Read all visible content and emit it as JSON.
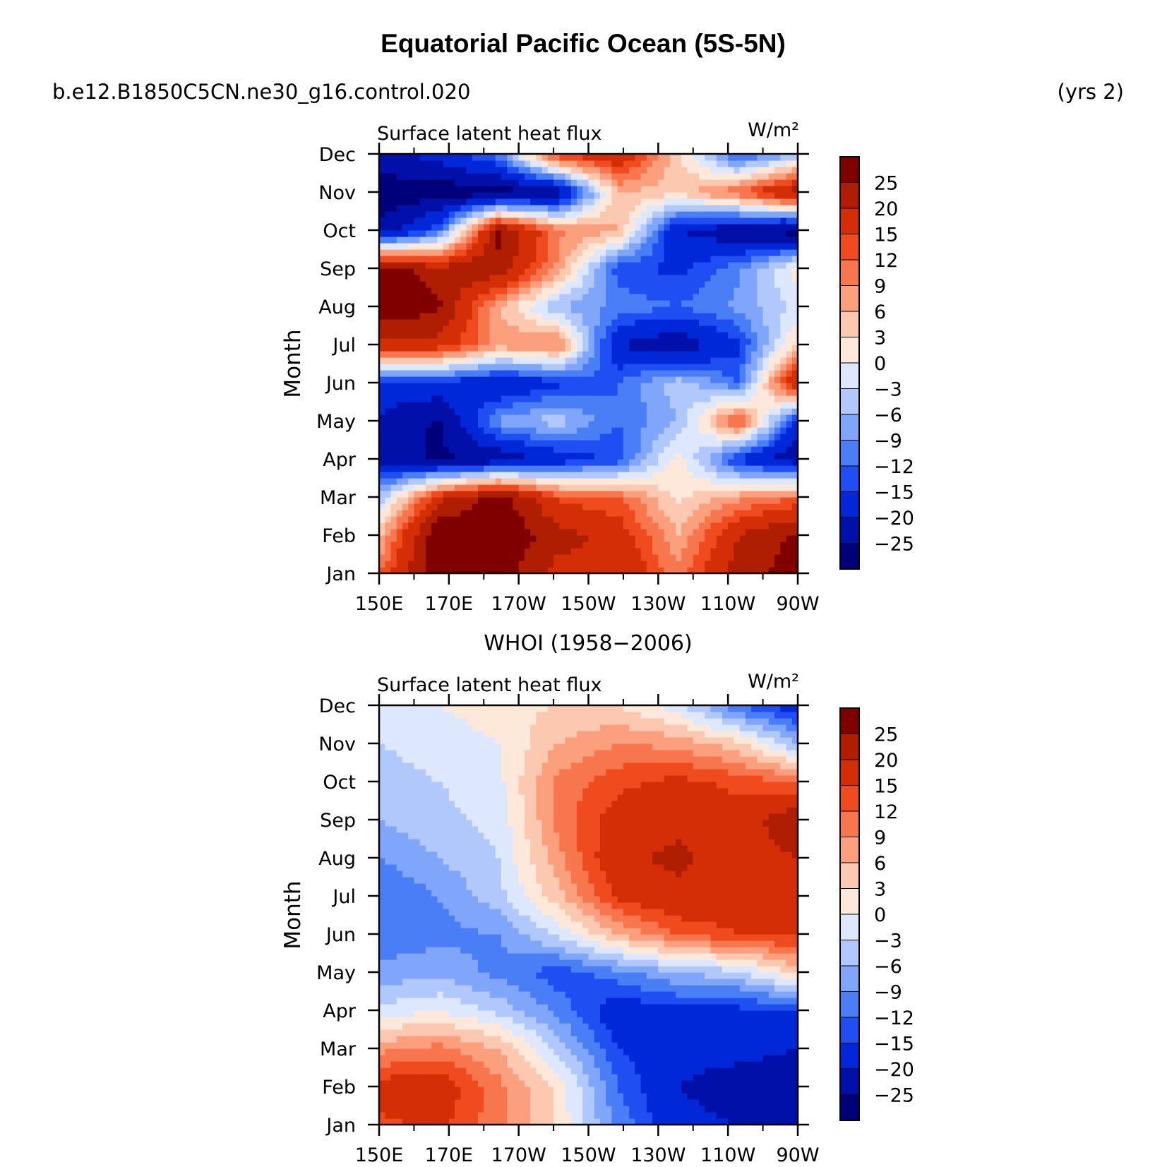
{
  "main_title": "Equatorial Pacific Ocean (5S-5N)",
  "case_name": "b.e12.B1850C5CN.ne30_g16.control.020",
  "years_label": "(yrs 2)",
  "colors": {
    "palette": [
      "#00007a",
      "#0010a8",
      "#0028d8",
      "#1f4ff2",
      "#4a7ef7",
      "#7fa6fb",
      "#b1c8fd",
      "#dde8fe",
      "#fde8da",
      "#fcc8b0",
      "#fb9f7d",
      "#f8764d",
      "#f04a1f",
      "#d42e07",
      "#b01e02",
      "#800000"
    ]
  },
  "chart_data": [
    {
      "type": "heatmap",
      "title": "",
      "left_label": "Surface latent heat flux",
      "units": "W/m²",
      "ylabel": "Month",
      "xlabel": "",
      "x": [
        "150E",
        "170E",
        "170W",
        "150W",
        "130W",
        "110W",
        "90W"
      ],
      "xlim": [
        150,
        270
      ],
      "y": [
        "Jan",
        "Feb",
        "Mar",
        "Apr",
        "May",
        "Jun",
        "Jul",
        "Aug",
        "Sep",
        "Oct",
        "Nov",
        "Dec"
      ],
      "colorbar_levels": [
        "25",
        "20",
        "15",
        "12",
        "9",
        "6",
        "3",
        "0",
        "−3",
        "−6",
        "−9",
        "−12",
        "−15",
        "−20",
        "−25"
      ],
      "values": [
        [
          12,
          28,
          28,
          18,
          20,
          10,
          22,
          28
        ],
        [
          5,
          30,
          30,
          22,
          18,
          6,
          20,
          26
        ],
        [
          -5,
          18,
          28,
          14,
          12,
          2,
          8,
          12
        ],
        [
          -22,
          -26,
          -24,
          -18,
          -14,
          2,
          -16,
          -24
        ],
        [
          -20,
          -26,
          -8,
          -4,
          -12,
          -6,
          14,
          -18
        ],
        [
          -18,
          -16,
          -20,
          -16,
          -12,
          -4,
          -12,
          22
        ],
        [
          18,
          18,
          8,
          10,
          -20,
          -24,
          -16,
          4
        ],
        [
          30,
          26,
          6,
          -6,
          -10,
          -12,
          -8,
          -2
        ],
        [
          28,
          22,
          24,
          8,
          -14,
          -16,
          -10,
          2
        ],
        [
          -24,
          -12,
          26,
          10,
          6,
          -20,
          -24,
          -28
        ],
        [
          -28,
          -28,
          -28,
          -24,
          6,
          4,
          12,
          24
        ],
        [
          -22,
          -18,
          -10,
          16,
          20,
          4,
          -14,
          -6
        ]
      ]
    },
    {
      "type": "heatmap",
      "title": "WHOI (1958−2006)",
      "left_label": "Surface latent heat flux",
      "units": "W/m²",
      "ylabel": "Month",
      "xlabel": "",
      "x": [
        "150E",
        "170E",
        "170W",
        "150W",
        "130W",
        "110W",
        "90W"
      ],
      "xlim": [
        150,
        270
      ],
      "y": [
        "Jan",
        "Feb",
        "Mar",
        "Apr",
        "May",
        "Jun",
        "Jul",
        "Aug",
        "Sep",
        "Oct",
        "Nov",
        "Dec"
      ],
      "colorbar_levels": [
        "25",
        "20",
        "15",
        "12",
        "9",
        "6",
        "3",
        "0",
        "−3",
        "−6",
        "−9",
        "−12",
        "−15",
        "−20",
        "−25"
      ],
      "values": [
        [
          14,
          16,
          10,
          2,
          -10,
          -18,
          -20,
          -25
        ],
        [
          17,
          18,
          10,
          2,
          -12,
          -20,
          -23,
          -24
        ],
        [
          8,
          10,
          6,
          -4,
          -15,
          -18,
          -18,
          -20
        ],
        [
          -2,
          0,
          -4,
          -10,
          -18,
          -16,
          -16,
          -15
        ],
        [
          -8,
          -7,
          -10,
          -14,
          -10,
          -6,
          -4,
          4
        ],
        [
          -11,
          -10,
          -9,
          -2,
          6,
          12,
          15,
          16
        ],
        [
          -12,
          -9,
          -4,
          5,
          16,
          19,
          18,
          19
        ],
        [
          -9,
          -6,
          -3,
          8,
          19,
          21,
          18,
          20
        ],
        [
          -6,
          -4,
          -2,
          10,
          17,
          19,
          17,
          24
        ],
        [
          -4,
          -3,
          -1,
          10,
          14,
          16,
          14,
          12
        ],
        [
          -3,
          -2,
          0,
          6,
          9,
          8,
          4,
          -6
        ],
        [
          -1,
          0,
          2,
          3,
          3,
          -2,
          -12,
          -18
        ]
      ]
    }
  ]
}
